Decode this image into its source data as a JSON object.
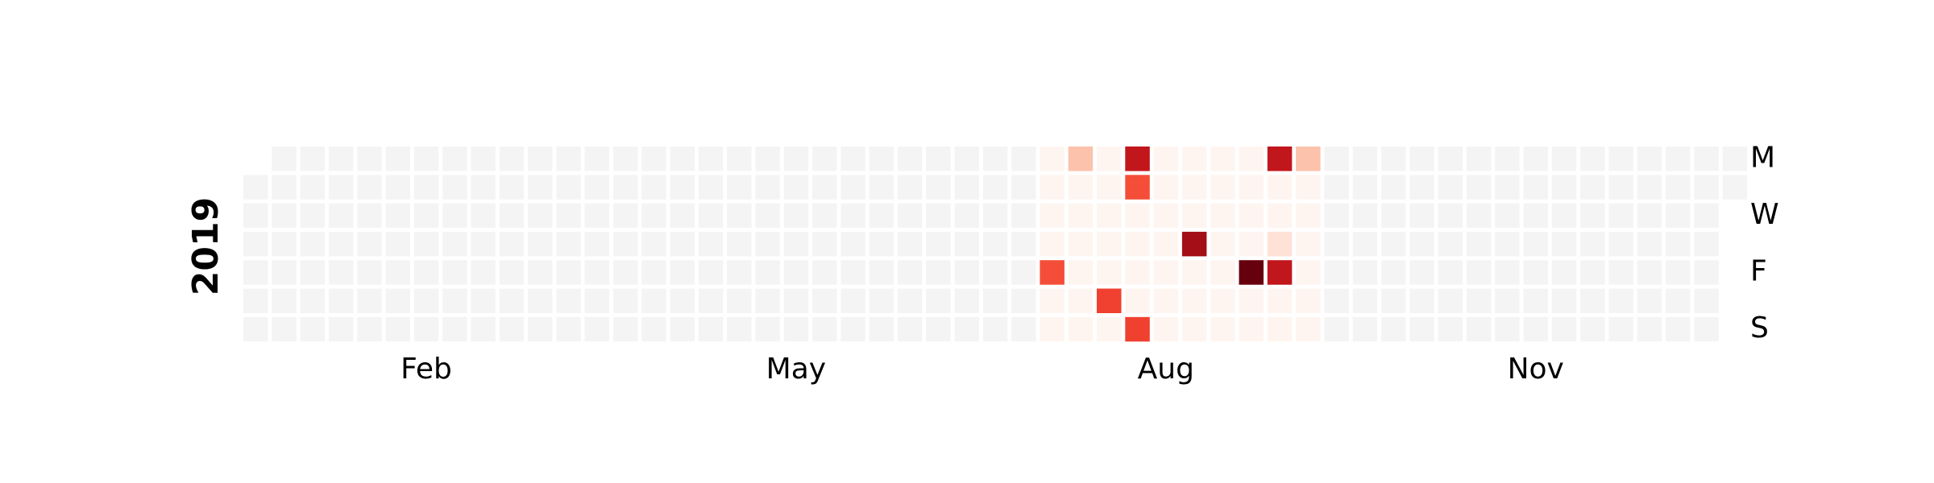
{
  "chart_data": {
    "type": "heatmap",
    "year_label": "2019",
    "day_labels": [
      {
        "row": 0,
        "text": "M"
      },
      {
        "row": 2,
        "text": "W"
      },
      {
        "row": 4,
        "text": "F"
      },
      {
        "row": 6,
        "text": "S"
      }
    ],
    "month_labels": [
      {
        "week": 6,
        "text": "Feb"
      },
      {
        "week": 19,
        "text": "May"
      },
      {
        "week": 32,
        "text": "Aug"
      },
      {
        "week": 45,
        "text": "Nov"
      }
    ],
    "weeks": 53,
    "first_week_starts_row": 1,
    "last_week_ends_row": 1,
    "active_weeks": [
      28,
      37
    ],
    "colors": {
      "empty": "#f4f4f4",
      "background": "#ffffff",
      "scale": [
        "#fff5f0",
        "#fee0d2",
        "#fcbba1",
        "#fb6a4a",
        "#ef3b2c",
        "#cb181d",
        "#67000d"
      ]
    },
    "cells": [
      {
        "week": 28,
        "row": 4,
        "level": 0.6
      },
      {
        "week": 29,
        "row": 0,
        "level": 0.3
      },
      {
        "week": 30,
        "row": 5,
        "level": 0.65
      },
      {
        "week": 31,
        "row": 0,
        "level": 0.85
      },
      {
        "week": 31,
        "row": 1,
        "level": 0.6
      },
      {
        "week": 31,
        "row": 6,
        "level": 0.65
      },
      {
        "week": 33,
        "row": 3,
        "level": 0.9
      },
      {
        "week": 35,
        "row": 4,
        "level": 1.0
      },
      {
        "week": 36,
        "row": 0,
        "level": 0.85
      },
      {
        "week": 36,
        "row": 3,
        "level": 0.15
      },
      {
        "week": 36,
        "row": 4,
        "level": 0.85
      },
      {
        "week": 37,
        "row": 0,
        "level": 0.3
      }
    ]
  }
}
